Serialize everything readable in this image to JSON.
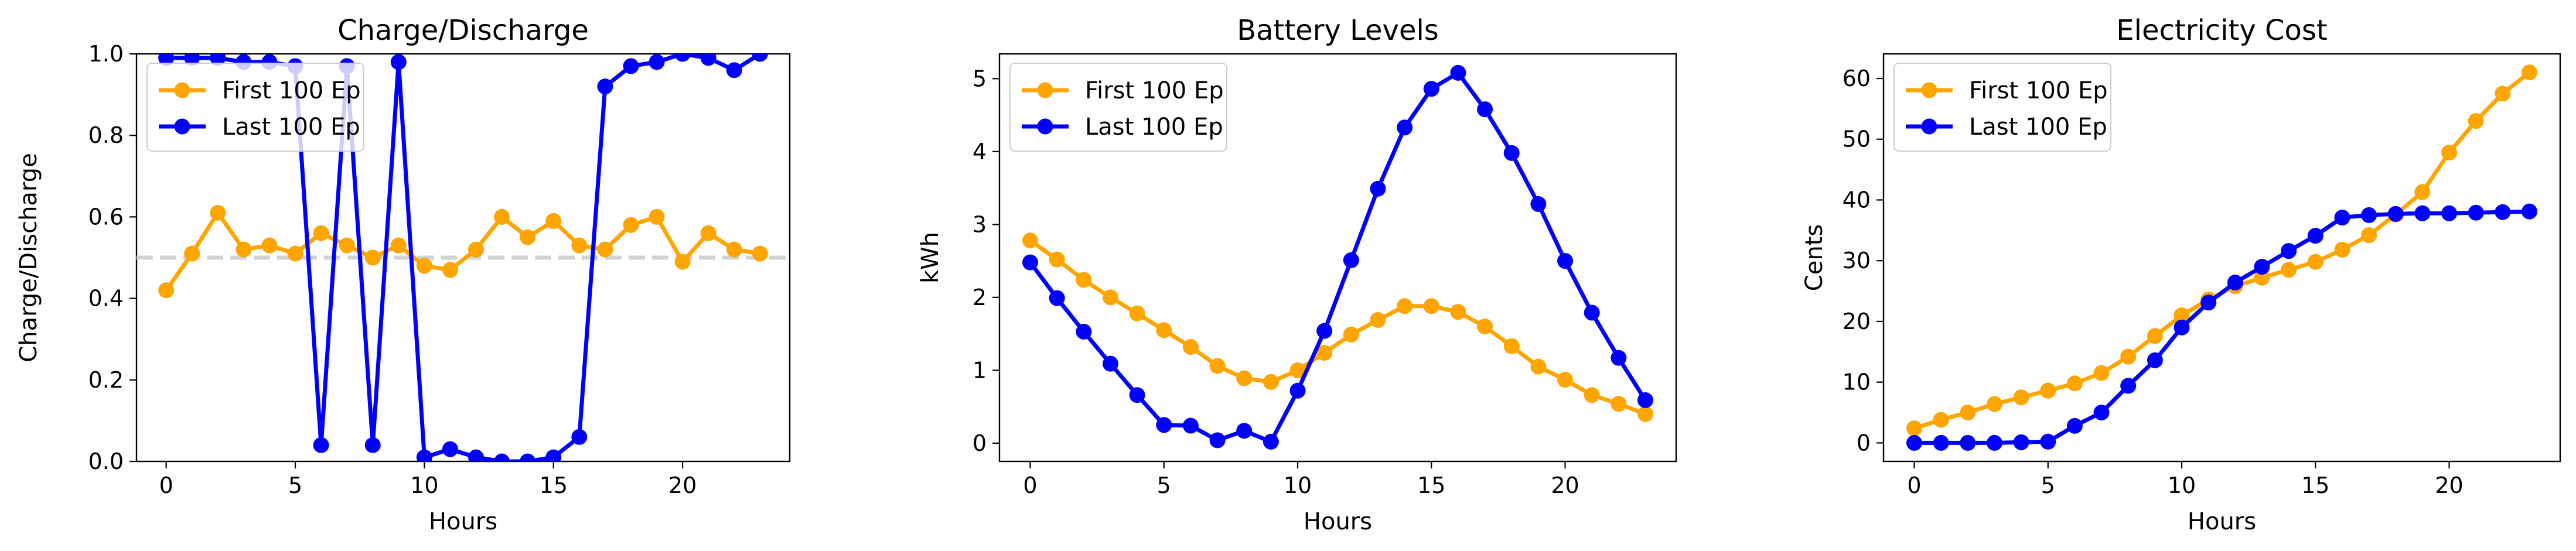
{
  "colors": {
    "first": "#FFA500",
    "last": "#0000FF",
    "ref_line": "#D3D3D3"
  },
  "chart_data": [
    {
      "type": "line",
      "title": "Charge/Discharge",
      "xlabel": "Hours",
      "ylabel": "Charge/Discharge",
      "xlim": [
        -1.15,
        24.15
      ],
      "ylim": [
        0.0,
        1.0
      ],
      "xticks": [
        0,
        5,
        10,
        15,
        20
      ],
      "yticks": [
        0.0,
        0.2,
        0.4,
        0.6,
        0.8,
        1.0
      ],
      "ytick_labels": [
        "0.0",
        "0.2",
        "0.4",
        "0.6",
        "0.8",
        "1.0"
      ],
      "legend": "top-left",
      "reference_line": {
        "y": 0.5,
        "style": "dashed"
      },
      "x": [
        0,
        1,
        2,
        3,
        4,
        5,
        6,
        7,
        8,
        9,
        10,
        11,
        12,
        13,
        14,
        15,
        16,
        17,
        18,
        19,
        20,
        21,
        22,
        23
      ],
      "series": [
        {
          "name": "First 100 Ep",
          "color": "#FFA500",
          "values": [
            0.42,
            0.51,
            0.61,
            0.52,
            0.53,
            0.51,
            0.56,
            0.53,
            0.5,
            0.53,
            0.48,
            0.47,
            0.52,
            0.6,
            0.55,
            0.59,
            0.53,
            0.52,
            0.58,
            0.6,
            0.49,
            0.56,
            0.52,
            0.51
          ]
        },
        {
          "name": "Last 100 Ep",
          "color": "#0000FF",
          "values": [
            0.99,
            0.99,
            0.99,
            0.98,
            0.98,
            0.97,
            0.04,
            0.97,
            0.04,
            0.98,
            0.01,
            0.03,
            0.01,
            0.0,
            0.0,
            0.01,
            0.06,
            0.92,
            0.97,
            0.98,
            1.0,
            0.99,
            0.96,
            1.0
          ]
        }
      ]
    },
    {
      "type": "line",
      "title": "Battery Levels",
      "xlabel": "Hours",
      "ylabel": "kWh",
      "xlim": [
        -1.15,
        24.15
      ],
      "ylim": [
        -0.25,
        5.34
      ],
      "xticks": [
        0,
        5,
        10,
        15,
        20
      ],
      "yticks": [
        0,
        1,
        2,
        3,
        4,
        5
      ],
      "ytick_labels": [
        "0",
        "1",
        "2",
        "3",
        "4",
        "5"
      ],
      "legend": "top-left",
      "x": [
        0,
        1,
        2,
        3,
        4,
        5,
        6,
        7,
        8,
        9,
        10,
        11,
        12,
        13,
        14,
        15,
        16,
        17,
        18,
        19,
        20,
        21,
        22,
        23
      ],
      "series": [
        {
          "name": "First 100 Ep",
          "color": "#FFA500",
          "values": [
            2.78,
            2.52,
            2.24,
            2.0,
            1.78,
            1.55,
            1.32,
            1.06,
            0.89,
            0.84,
            1.0,
            1.24,
            1.49,
            1.69,
            1.88,
            1.88,
            1.8,
            1.6,
            1.33,
            1.05,
            0.87,
            0.66,
            0.54,
            0.4
          ]
        },
        {
          "name": "Last 100 Ep",
          "color": "#0000FF",
          "values": [
            2.48,
            1.99,
            1.53,
            1.09,
            0.66,
            0.25,
            0.24,
            0.04,
            0.17,
            0.02,
            0.72,
            1.54,
            2.51,
            3.49,
            4.33,
            4.86,
            5.08,
            4.58,
            3.98,
            3.28,
            2.5,
            1.79,
            1.17,
            0.59
          ]
        }
      ]
    },
    {
      "type": "line",
      "title": "Electricity Cost",
      "xlabel": "Hours",
      "ylabel": "Cents",
      "xlim": [
        -1.15,
        24.15
      ],
      "ylim": [
        -3.05,
        64.05
      ],
      "xticks": [
        0,
        5,
        10,
        15,
        20
      ],
      "yticks": [
        0,
        10,
        20,
        30,
        40,
        50,
        60
      ],
      "ytick_labels": [
        "0",
        "10",
        "20",
        "30",
        "40",
        "50",
        "60"
      ],
      "legend": "top-left",
      "x": [
        0,
        1,
        2,
        3,
        4,
        5,
        6,
        7,
        8,
        9,
        10,
        11,
        12,
        13,
        14,
        15,
        16,
        17,
        18,
        19,
        20,
        21,
        22,
        23
      ],
      "series": [
        {
          "name": "First 100 Ep",
          "color": "#FFA500",
          "values": [
            2.4,
            3.8,
            5.0,
            6.4,
            7.5,
            8.6,
            9.8,
            11.5,
            14.2,
            17.6,
            21.0,
            23.6,
            25.8,
            27.2,
            28.5,
            29.8,
            31.8,
            34.2,
            37.6,
            41.3,
            47.8,
            53.0,
            57.5,
            61.0
          ]
        },
        {
          "name": "Last 100 Ep",
          "color": "#0000FF",
          "values": [
            0.0,
            0.0,
            0.0,
            0.0,
            0.1,
            0.2,
            2.8,
            5.0,
            9.4,
            13.6,
            19.0,
            23.1,
            26.4,
            29.0,
            31.6,
            34.1,
            37.1,
            37.5,
            37.7,
            37.8,
            37.8,
            37.9,
            38.0,
            38.1
          ]
        }
      ]
    }
  ]
}
